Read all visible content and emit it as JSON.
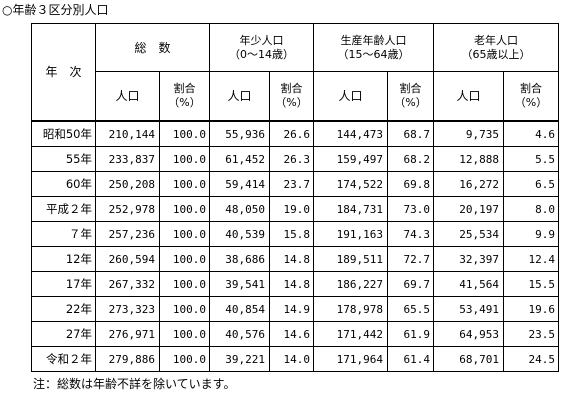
{
  "title": "○年齢３区分別人口",
  "note": "注：総数は年齢不詳を除いています。",
  "header": {
    "year": "年　次",
    "total": "総　数",
    "young": "年少人口",
    "young_range": "（0～14歳）",
    "working": "生産年齢人口",
    "working_range": "（15～64歳）",
    "elderly": "老年人口",
    "elderly_range": "（65歳以上）",
    "population": "人口",
    "ratio_line1": "割合",
    "ratio_line2": "（%）"
  },
  "rows": [
    {
      "year": "昭和50年",
      "total": "210,144",
      "total_pct": "100.0",
      "young": "55,936",
      "young_pct": "26.6",
      "working": "144,473",
      "working_pct": "68.7",
      "elderly": "9,735",
      "elderly_pct": "4.6"
    },
    {
      "year": "55年",
      "total": "233,837",
      "total_pct": "100.0",
      "young": "61,452",
      "young_pct": "26.3",
      "working": "159,497",
      "working_pct": "68.2",
      "elderly": "12,888",
      "elderly_pct": "5.5"
    },
    {
      "year": "60年",
      "total": "250,208",
      "total_pct": "100.0",
      "young": "59,414",
      "young_pct": "23.7",
      "working": "174,522",
      "working_pct": "69.8",
      "elderly": "16,272",
      "elderly_pct": "6.5"
    },
    {
      "year": "平成２年",
      "total": "252,978",
      "total_pct": "100.0",
      "young": "48,050",
      "young_pct": "19.0",
      "working": "184,731",
      "working_pct": "73.0",
      "elderly": "20,197",
      "elderly_pct": "8.0"
    },
    {
      "year": "７年",
      "total": "257,236",
      "total_pct": "100.0",
      "young": "40,539",
      "young_pct": "15.8",
      "working": "191,163",
      "working_pct": "74.3",
      "elderly": "25,534",
      "elderly_pct": "9.9"
    },
    {
      "year": "12年",
      "total": "260,594",
      "total_pct": "100.0",
      "young": "38,686",
      "young_pct": "14.8",
      "working": "189,511",
      "working_pct": "72.7",
      "elderly": "32,397",
      "elderly_pct": "12.4"
    },
    {
      "year": "17年",
      "total": "267,332",
      "total_pct": "100.0",
      "young": "39,541",
      "young_pct": "14.8",
      "working": "186,227",
      "working_pct": "69.7",
      "elderly": "41,564",
      "elderly_pct": "15.5"
    },
    {
      "year": "22年",
      "total": "273,323",
      "total_pct": "100.0",
      "young": "40,854",
      "young_pct": "14.9",
      "working": "178,978",
      "working_pct": "65.5",
      "elderly": "53,491",
      "elderly_pct": "19.6"
    },
    {
      "year": "27年",
      "total": "276,971",
      "total_pct": "100.0",
      "young": "40,576",
      "young_pct": "14.6",
      "working": "171,442",
      "working_pct": "61.9",
      "elderly": "64,953",
      "elderly_pct": "23.5"
    },
    {
      "year": "令和２年",
      "total": "279,886",
      "total_pct": "100.0",
      "young": "39,221",
      "young_pct": "14.0",
      "working": "171,964",
      "working_pct": "61.4",
      "elderly": "68,701",
      "elderly_pct": "24.5"
    }
  ]
}
